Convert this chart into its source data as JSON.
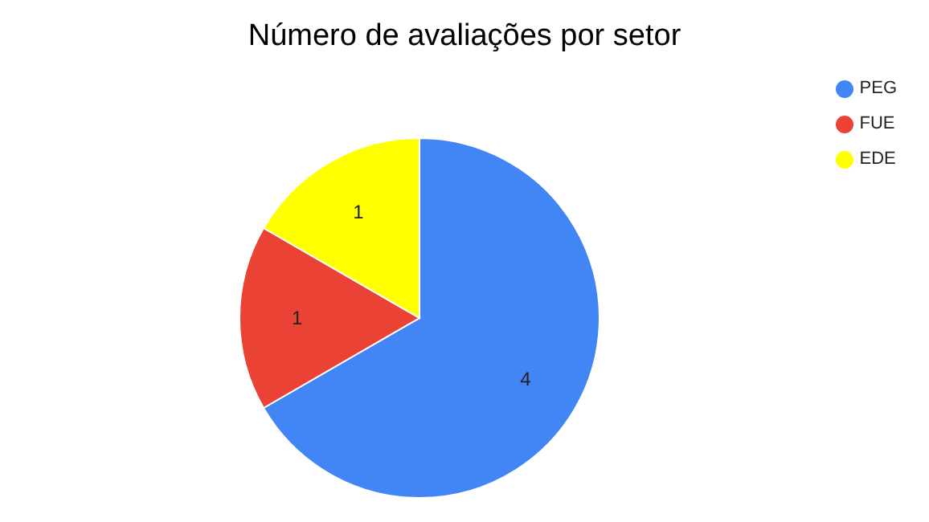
{
  "chart_data": {
    "type": "pie",
    "title": "Número de avaliações por setor",
    "categories": [
      "PEG",
      "FUE",
      "EDE"
    ],
    "values": [
      4,
      1,
      1
    ],
    "colors": [
      "#4285f4",
      "#ea4335",
      "#ffff00"
    ],
    "data_labels": true,
    "legend": "top right"
  }
}
